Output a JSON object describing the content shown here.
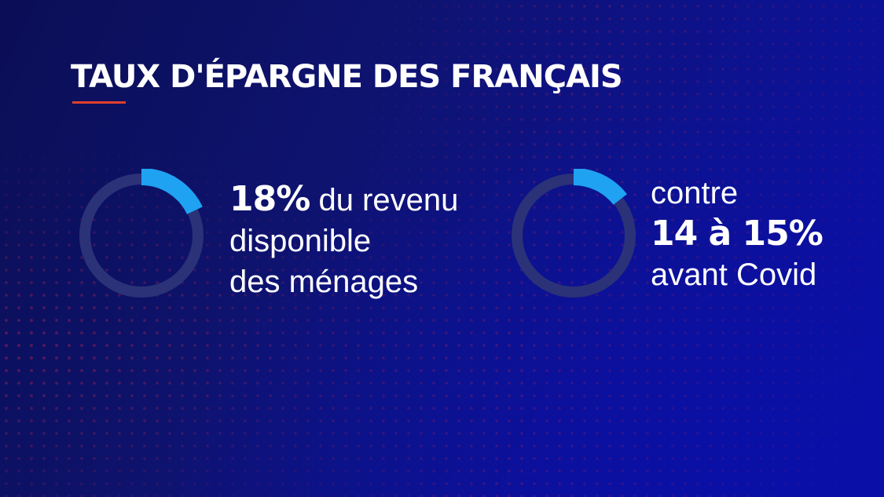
{
  "title": "TAUX D'ÉPARGNE DES FRANÇAIS",
  "colors": {
    "accent_underline": "#e0402a",
    "donut_fill": "#1fa2f2",
    "donut_track": "#2b3277",
    "text": "#ffffff"
  },
  "stats": [
    {
      "highlight": "18%",
      "line1_rest": " du revenu",
      "line2": "disponible",
      "line3": "des ménages"
    },
    {
      "line1": "contre",
      "highlight": "14 à 15%",
      "line3": "avant Covid"
    }
  ],
  "chart_data": [
    {
      "type": "pie",
      "values": [
        18,
        82
      ]
    },
    {
      "type": "pie",
      "values": [
        14.5,
        85.5
      ]
    }
  ]
}
